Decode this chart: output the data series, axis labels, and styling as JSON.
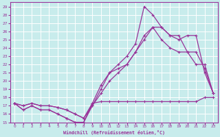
{
  "xlabel": "Windchill (Refroidissement éolien,°C)",
  "bg_color": "#c8ecec",
  "line_color": "#993399",
  "grid_color": "#aad4d4",
  "xlim": [
    -0.5,
    23.5
  ],
  "ylim": [
    15,
    29.5
  ],
  "xticks": [
    0,
    1,
    2,
    3,
    4,
    5,
    6,
    7,
    8,
    9,
    10,
    11,
    12,
    13,
    14,
    15,
    16,
    17,
    18,
    19,
    20,
    21,
    22,
    23
  ],
  "yticks": [
    15,
    16,
    17,
    18,
    19,
    20,
    21,
    22,
    23,
    24,
    25,
    26,
    27,
    28,
    29
  ],
  "line1_x": [
    0,
    1,
    2,
    3,
    4,
    5,
    6,
    7,
    8,
    9,
    10,
    11,
    12,
    13,
    14,
    15,
    16,
    17,
    18,
    19,
    20,
    21,
    22,
    23
  ],
  "line1_y": [
    17.3,
    17.0,
    17.3,
    17.0,
    17.0,
    16.8,
    16.5,
    16.0,
    15.5,
    17.3,
    17.5,
    17.5,
    17.5,
    17.5,
    17.5,
    17.5,
    17.5,
    17.5,
    17.5,
    17.5,
    17.5,
    17.5,
    18.0,
    18.0
  ],
  "line2_x": [
    0,
    1,
    2,
    3,
    4,
    5,
    6,
    7,
    8,
    9,
    10,
    11,
    12,
    13,
    14,
    15,
    16,
    17,
    18,
    19,
    20,
    21,
    22,
    23
  ],
  "line2_y": [
    17.3,
    16.5,
    17.0,
    16.5,
    16.5,
    16.0,
    15.5,
    15.0,
    15.0,
    17.3,
    19.5,
    21.0,
    21.5,
    22.0,
    23.5,
    25.0,
    26.5,
    25.0,
    24.0,
    23.5,
    23.5,
    22.0,
    22.0,
    18.5
  ],
  "line3_x": [
    0,
    1,
    2,
    3,
    4,
    5,
    6,
    7,
    8,
    9,
    10,
    11,
    12,
    13,
    14,
    15,
    16,
    17,
    18,
    19,
    20,
    21,
    22,
    23
  ],
  "line3_y": [
    17.3,
    17.0,
    17.3,
    17.0,
    17.0,
    16.8,
    16.5,
    16.0,
    15.5,
    17.0,
    18.5,
    20.0,
    21.0,
    22.0,
    23.5,
    25.5,
    26.5,
    26.5,
    25.5,
    25.5,
    23.5,
    23.5,
    21.5,
    18.5
  ],
  "line4_x": [
    0,
    1,
    2,
    3,
    4,
    5,
    6,
    7,
    8,
    9,
    10,
    11,
    12,
    13,
    14,
    15,
    16,
    17,
    18,
    19,
    20,
    21,
    22,
    23
  ],
  "line4_y": [
    17.3,
    16.5,
    17.0,
    16.5,
    16.5,
    16.0,
    15.5,
    15.0,
    15.0,
    17.0,
    19.0,
    21.0,
    22.0,
    23.0,
    24.5,
    29.0,
    28.0,
    26.5,
    25.5,
    25.0,
    25.5,
    25.5,
    21.0,
    18.5
  ]
}
